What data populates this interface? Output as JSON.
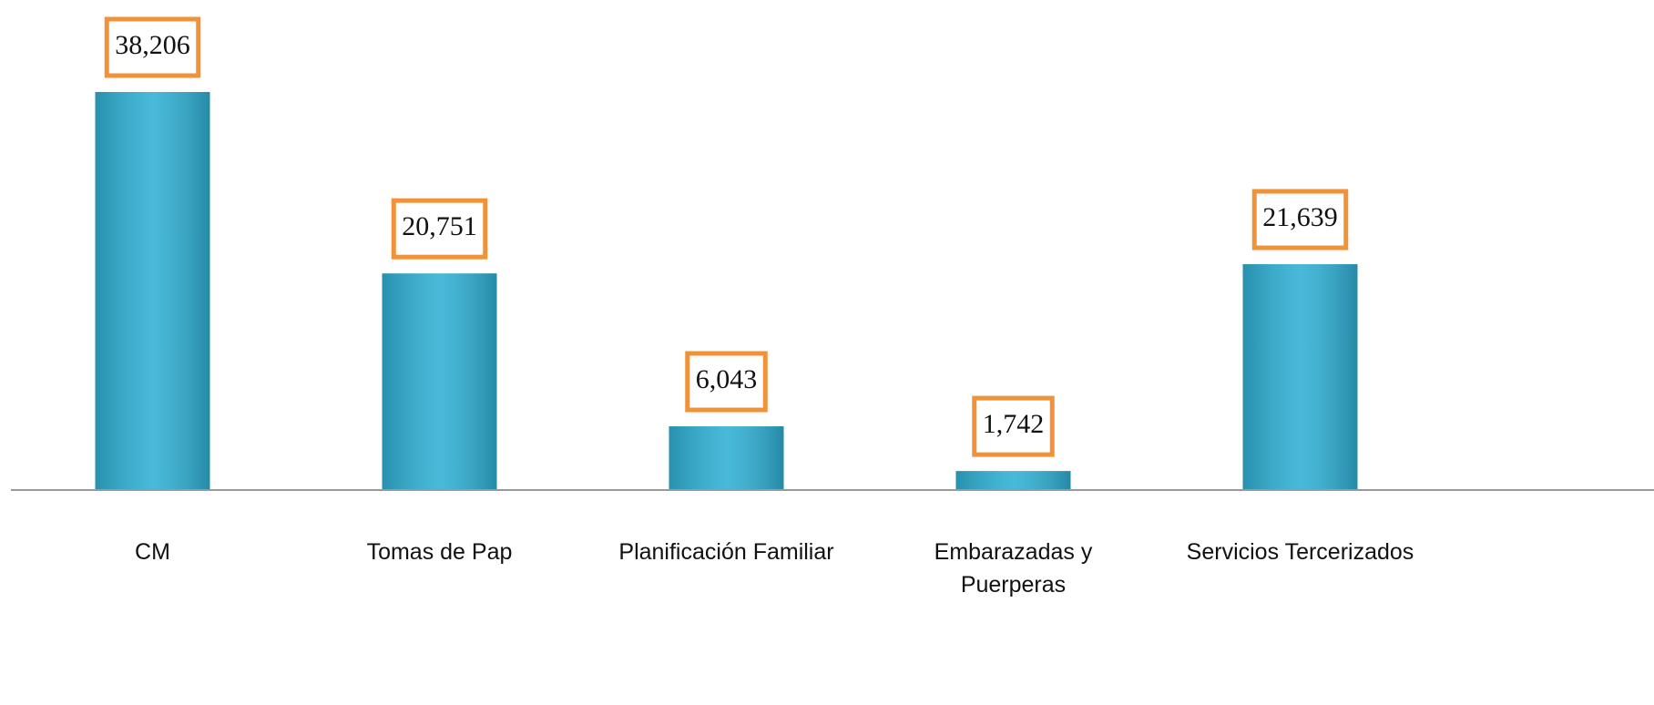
{
  "chart_data": {
    "type": "bar",
    "categories": [
      "CM",
      "Tomas de Pap",
      "Planificación Familiar",
      "Embarazadas y Puerperas",
      "Servicios Tercerizados"
    ],
    "values": [
      38206,
      20751,
      6043,
      1742,
      21639
    ],
    "value_labels": [
      "38,206",
      "20,751",
      "6,043",
      "1,742",
      "21,639"
    ],
    "color": "#2fb0d4"
  }
}
